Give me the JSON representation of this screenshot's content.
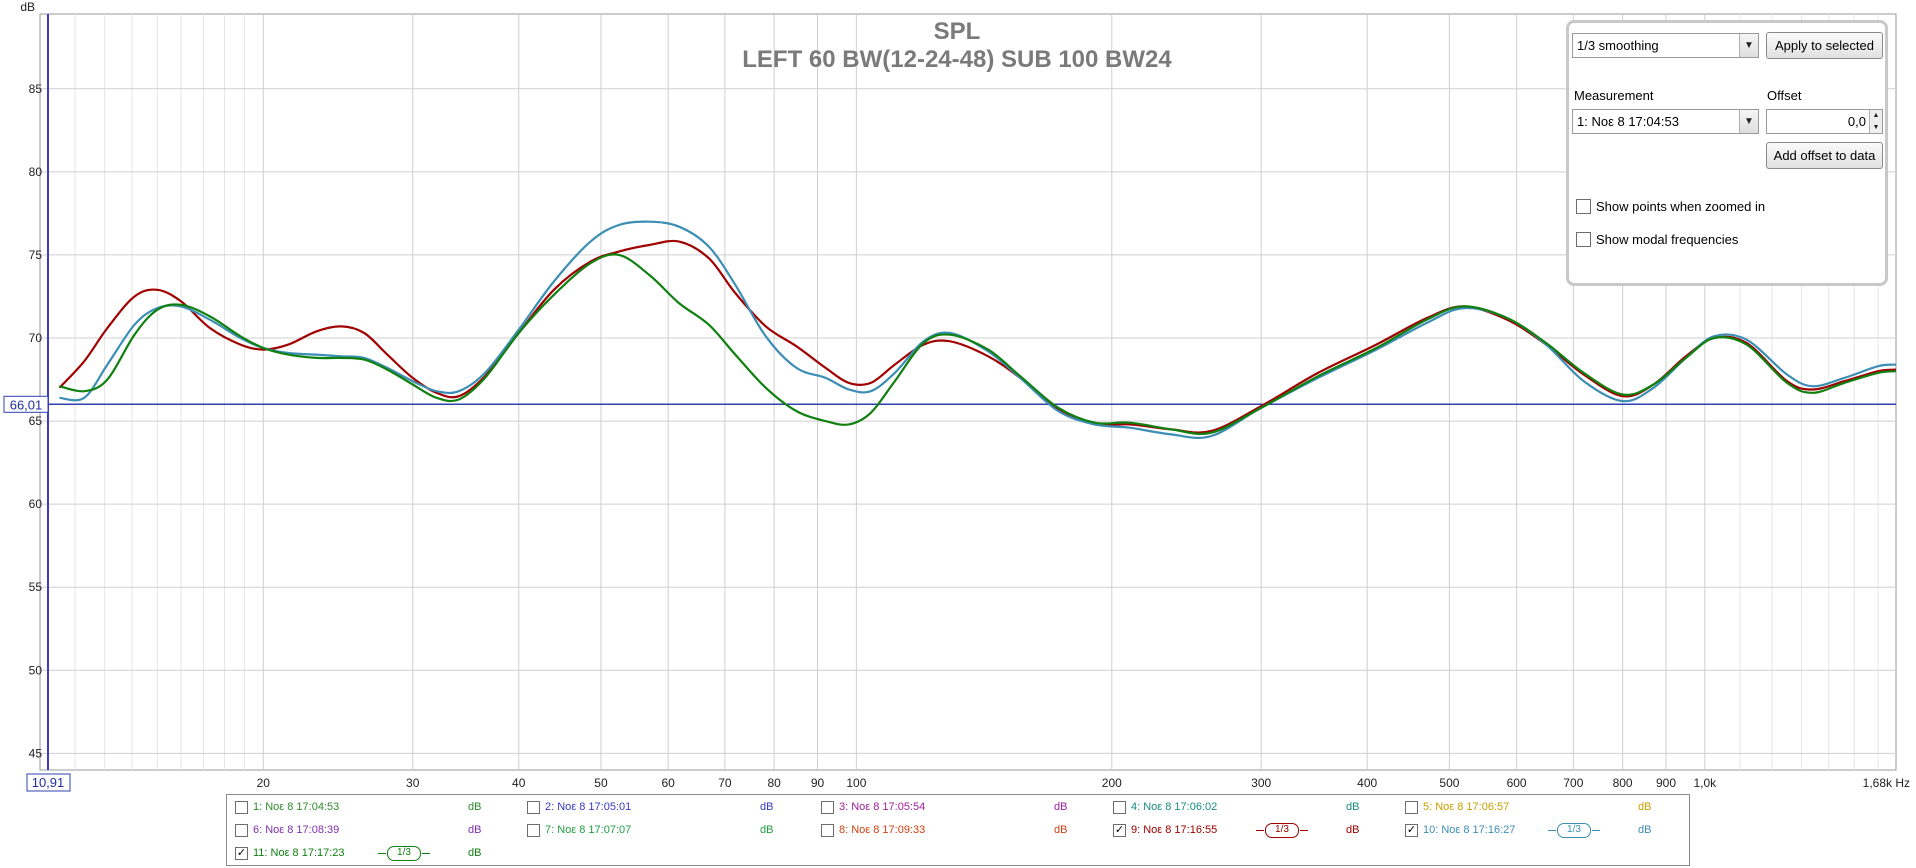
{
  "chart_data": {
    "type": "line",
    "title": "SPL",
    "subtitle": "LEFT 60 BW(12-24-48) SUB 100 BW24",
    "ylabel": "dB",
    "x_unit": "Hz",
    "xscale": "log",
    "xlim": [
      10.91,
      1680
    ],
    "ylim": [
      44,
      89.5
    ],
    "y_ticks": [
      45,
      50,
      55,
      60,
      65,
      70,
      75,
      80,
      85
    ],
    "x_ticks": [
      {
        "v": 20,
        "label": "20"
      },
      {
        "v": 30,
        "label": "30"
      },
      {
        "v": 40,
        "label": "40"
      },
      {
        "v": 50,
        "label": "50"
      },
      {
        "v": 60,
        "label": "60"
      },
      {
        "v": 70,
        "label": "70"
      },
      {
        "v": 80,
        "label": "80"
      },
      {
        "v": 90,
        "label": "90"
      },
      {
        "v": 100,
        "label": "100"
      },
      {
        "v": 200,
        "label": "200"
      },
      {
        "v": 300,
        "label": "300"
      },
      {
        "v": 400,
        "label": "400"
      },
      {
        "v": 500,
        "label": "500"
      },
      {
        "v": 600,
        "label": "600"
      },
      {
        "v": 700,
        "label": "700"
      },
      {
        "v": 800,
        "label": "800"
      },
      {
        "v": 900,
        "label": "900"
      },
      {
        "v": 1000,
        "label": "1,0k"
      }
    ],
    "x_end_label": "1,68k Hz",
    "x_cursor_label": "10,91",
    "cursor_y": 66.01,
    "cursor_y_label": "66,01",
    "grid": true,
    "series": [
      {
        "name": "9: Νοε 8 17:16:55",
        "color": "#a00000",
        "points": [
          [
            11.5,
            67.0
          ],
          [
            12.3,
            68.6
          ],
          [
            13.1,
            70.6
          ],
          [
            14.1,
            72.5
          ],
          [
            15.0,
            72.9
          ],
          [
            16.0,
            72.2
          ],
          [
            17.3,
            70.6
          ],
          [
            18.8,
            69.6
          ],
          [
            20.0,
            69.3
          ],
          [
            21.4,
            69.6
          ],
          [
            23.1,
            70.4
          ],
          [
            24.7,
            70.7
          ],
          [
            26.3,
            70.3
          ],
          [
            28.0,
            69.0
          ],
          [
            30.0,
            67.6
          ],
          [
            32.0,
            66.7
          ],
          [
            34.0,
            66.5
          ],
          [
            36.5,
            67.7
          ],
          [
            40.0,
            70.3
          ],
          [
            44.0,
            72.9
          ],
          [
            48.6,
            74.6
          ],
          [
            52.5,
            75.2
          ],
          [
            57.0,
            75.6
          ],
          [
            61.8,
            75.8
          ],
          [
            67.0,
            74.8
          ],
          [
            72.0,
            72.7
          ],
          [
            78.2,
            70.7
          ],
          [
            85.0,
            69.5
          ],
          [
            92.0,
            68.2
          ],
          [
            98.0,
            67.3
          ],
          [
            104.0,
            67.3
          ],
          [
            111.0,
            68.4
          ],
          [
            120.0,
            69.6
          ],
          [
            129.0,
            69.8
          ],
          [
            143.0,
            68.9
          ],
          [
            156.0,
            67.6
          ],
          [
            173.0,
            65.7
          ],
          [
            191.0,
            64.8
          ],
          [
            210.0,
            64.8
          ],
          [
            235.0,
            64.5
          ],
          [
            262.0,
            64.4
          ],
          [
            300.0,
            65.9
          ],
          [
            350.0,
            67.9
          ],
          [
            410.0,
            69.6
          ],
          [
            470.0,
            71.2
          ],
          [
            520.0,
            71.9
          ],
          [
            585.0,
            71.1
          ],
          [
            650.0,
            69.6
          ],
          [
            720.0,
            67.8
          ],
          [
            800.0,
            66.5
          ],
          [
            870.0,
            67.2
          ],
          [
            950.0,
            68.9
          ],
          [
            1025.0,
            70.0
          ],
          [
            1120.0,
            69.7
          ],
          [
            1250.0,
            67.4
          ],
          [
            1340.0,
            66.9
          ],
          [
            1460.0,
            67.4
          ],
          [
            1600.0,
            68.0
          ],
          [
            1680.0,
            68.1
          ]
        ]
      },
      {
        "name": "10: Νοε 8 17:16:27",
        "color": "#3c8eb4",
        "points": [
          [
            11.5,
            66.4
          ],
          [
            12.3,
            66.4
          ],
          [
            13.1,
            68.4
          ],
          [
            14.1,
            70.8
          ],
          [
            15.0,
            71.8
          ],
          [
            16.0,
            71.9
          ],
          [
            17.3,
            71.1
          ],
          [
            18.8,
            70.0
          ],
          [
            20.0,
            69.4
          ],
          [
            21.4,
            69.1
          ],
          [
            23.1,
            69.0
          ],
          [
            24.7,
            68.9
          ],
          [
            26.3,
            68.8
          ],
          [
            28.0,
            68.2
          ],
          [
            30.0,
            67.4
          ],
          [
            32.0,
            66.8
          ],
          [
            34.0,
            66.8
          ],
          [
            36.5,
            67.9
          ],
          [
            40.0,
            70.5
          ],
          [
            44.0,
            73.4
          ],
          [
            48.6,
            75.8
          ],
          [
            52.5,
            76.8
          ],
          [
            57.0,
            77.0
          ],
          [
            61.8,
            76.7
          ],
          [
            67.0,
            75.5
          ],
          [
            72.0,
            73.2
          ],
          [
            78.2,
            70.1
          ],
          [
            85.0,
            68.2
          ],
          [
            92.0,
            67.6
          ],
          [
            98.0,
            66.9
          ],
          [
            104.0,
            66.8
          ],
          [
            111.0,
            67.9
          ],
          [
            120.0,
            69.8
          ],
          [
            129.0,
            70.3
          ],
          [
            143.0,
            69.2
          ],
          [
            156.0,
            67.6
          ],
          [
            173.0,
            65.6
          ],
          [
            191.0,
            64.8
          ],
          [
            210.0,
            64.6
          ],
          [
            235.0,
            64.2
          ],
          [
            262.0,
            64.1
          ],
          [
            300.0,
            65.8
          ],
          [
            350.0,
            67.6
          ],
          [
            410.0,
            69.3
          ],
          [
            470.0,
            70.9
          ],
          [
            520.0,
            71.8
          ],
          [
            585.0,
            71.2
          ],
          [
            650.0,
            69.6
          ],
          [
            720.0,
            67.4
          ],
          [
            800.0,
            66.2
          ],
          [
            870.0,
            67.0
          ],
          [
            950.0,
            68.8
          ],
          [
            1025.0,
            70.1
          ],
          [
            1120.0,
            69.9
          ],
          [
            1250.0,
            67.8
          ],
          [
            1340.0,
            67.1
          ],
          [
            1460.0,
            67.6
          ],
          [
            1600.0,
            68.3
          ],
          [
            1680.0,
            68.4
          ]
        ]
      },
      {
        "name": "11: Νοε 8 17:17:23",
        "color": "#108010",
        "points": [
          [
            11.5,
            67.1
          ],
          [
            12.3,
            66.8
          ],
          [
            13.1,
            67.5
          ],
          [
            14.1,
            70.2
          ],
          [
            15.0,
            71.7
          ],
          [
            16.0,
            72.0
          ],
          [
            17.3,
            71.3
          ],
          [
            18.8,
            70.1
          ],
          [
            20.0,
            69.4
          ],
          [
            21.4,
            69.0
          ],
          [
            23.1,
            68.8
          ],
          [
            24.7,
            68.8
          ],
          [
            26.3,
            68.7
          ],
          [
            28.0,
            68.1
          ],
          [
            30.0,
            67.2
          ],
          [
            32.0,
            66.4
          ],
          [
            34.0,
            66.3
          ],
          [
            36.5,
            67.6
          ],
          [
            40.0,
            70.3
          ],
          [
            44.0,
            72.6
          ],
          [
            48.6,
            74.5
          ],
          [
            52.5,
            75.0
          ],
          [
            57.0,
            73.8
          ],
          [
            61.8,
            72.1
          ],
          [
            67.0,
            70.8
          ],
          [
            72.0,
            69.0
          ],
          [
            78.2,
            67.0
          ],
          [
            85.0,
            65.6
          ],
          [
            92.0,
            65.0
          ],
          [
            98.0,
            64.8
          ],
          [
            104.0,
            65.5
          ],
          [
            111.0,
            67.4
          ],
          [
            120.0,
            69.7
          ],
          [
            129.0,
            70.2
          ],
          [
            143.0,
            69.3
          ],
          [
            156.0,
            67.7
          ],
          [
            173.0,
            65.8
          ],
          [
            191.0,
            64.9
          ],
          [
            210.0,
            64.9
          ],
          [
            235.0,
            64.5
          ],
          [
            262.0,
            64.3
          ],
          [
            300.0,
            65.8
          ],
          [
            350.0,
            67.7
          ],
          [
            410.0,
            69.4
          ],
          [
            470.0,
            71.1
          ],
          [
            520.0,
            71.9
          ],
          [
            585.0,
            71.2
          ],
          [
            650.0,
            69.7
          ],
          [
            720.0,
            67.9
          ],
          [
            800.0,
            66.6
          ],
          [
            870.0,
            67.2
          ],
          [
            950.0,
            68.8
          ],
          [
            1025.0,
            70.0
          ],
          [
            1120.0,
            69.6
          ],
          [
            1250.0,
            67.3
          ],
          [
            1340.0,
            66.7
          ],
          [
            1460.0,
            67.3
          ],
          [
            1600.0,
            67.9
          ],
          [
            1680.0,
            68.0
          ]
        ]
      }
    ]
  },
  "panel": {
    "smoothing_value": "1/3 smoothing",
    "apply_button": "Apply to selected",
    "measurement_label": "Measurement",
    "measurement_value": "1: Νοε 8 17:04:53",
    "offset_label": "Offset",
    "offset_value": "0,0",
    "add_offset_button": "Add offset to data",
    "show_points_label": "Show points when zoomed in",
    "show_modal_label": "Show modal frequencies"
  },
  "legend": {
    "items": [
      {
        "name": "1: Νοε 8 17:04:53",
        "unit": "dB",
        "checked": false,
        "color": "#2e8b2e",
        "smoothing": ""
      },
      {
        "name": "2: Νοε 8 17:05:01",
        "unit": "dB",
        "checked": false,
        "color": "#3838c8",
        "smoothing": ""
      },
      {
        "name": "3: Νοε 8 17:05:54",
        "unit": "dB",
        "checked": false,
        "color": "#a020a0",
        "smoothing": ""
      },
      {
        "name": "4: Νοε 8 17:06:02",
        "unit": "dB",
        "checked": false,
        "color": "#188a80",
        "smoothing": ""
      },
      {
        "name": "5: Νοε 8 17:06:57",
        "unit": "dB",
        "checked": false,
        "color": "#c8a000",
        "smoothing": ""
      },
      {
        "name": "6: Νοε 8 17:08:39",
        "unit": "dB",
        "checked": false,
        "color": "#8030b0",
        "smoothing": ""
      },
      {
        "name": "7: Νοε 8 17:07:07",
        "unit": "dB",
        "checked": false,
        "color": "#20a040",
        "smoothing": ""
      },
      {
        "name": "8: Νοε 8 17:09:33",
        "unit": "dB",
        "checked": false,
        "color": "#d04010",
        "smoothing": ""
      },
      {
        "name": "9: Νοε 8 17:16:55",
        "unit": "dB",
        "checked": true,
        "color": "#a00000",
        "smoothing": "1/3"
      },
      {
        "name": "10: Νοε 8 17:16:27",
        "unit": "dB",
        "checked": true,
        "color": "#3c8eb4",
        "smoothing": "1/3"
      },
      {
        "name": "11: Νοε 8 17:17:23",
        "unit": "dB",
        "checked": true,
        "color": "#108010",
        "smoothing": "1/3"
      }
    ]
  }
}
